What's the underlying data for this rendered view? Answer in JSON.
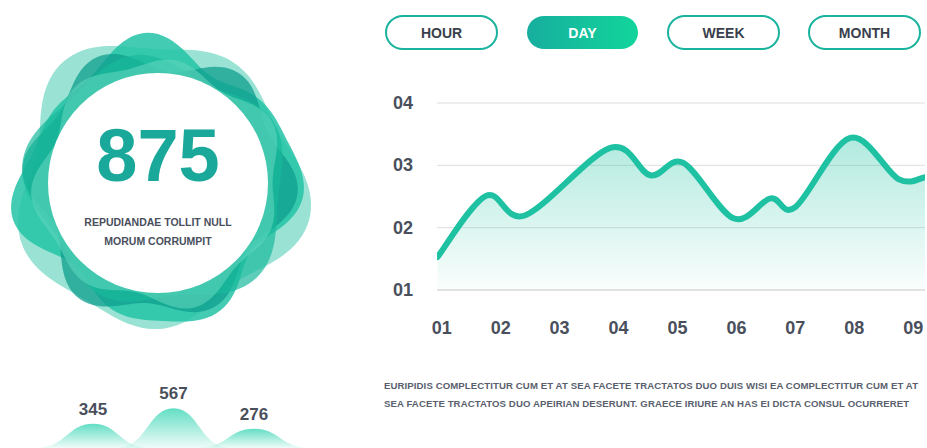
{
  "stat": {
    "value": 875,
    "caption": [
      "REPUDIANDAE TOLLIT NULL",
      "MORUM CORRUMPIT"
    ]
  },
  "buttons": {
    "labels": [
      "HOUR",
      "DAY",
      "WEEK",
      "MONTH"
    ],
    "active": 1
  },
  "chart_data": [
    {
      "type": "area",
      "color": "#1ec2a2",
      "x": [
        0.93,
        1.75,
        2.42,
        3.86,
        4.54,
        5.1,
        5.95,
        6.58,
        7.0,
        7.93,
        8.75,
        9.2
      ],
      "values": [
        1.53,
        2.51,
        2.2,
        3.28,
        2.84,
        3.04,
        2.15,
        2.47,
        2.33,
        3.44,
        2.78,
        2.81
      ],
      "xlim": [
        0.92,
        9.2
      ],
      "ylim": [
        1,
        4
      ],
      "xticks": [
        {
          "value": 1,
          "label": "01"
        },
        {
          "value": 2,
          "label": "02"
        },
        {
          "value": 3,
          "label": "03"
        },
        {
          "value": 4,
          "label": "04"
        },
        {
          "value": 5,
          "label": "05"
        },
        {
          "value": 6,
          "label": "06"
        },
        {
          "value": 7,
          "label": "07"
        },
        {
          "value": 8,
          "label": "08"
        },
        {
          "value": 9,
          "label": "09"
        }
      ],
      "yticks": [
        {
          "value": 1,
          "label": "01"
        },
        {
          "value": 2,
          "label": "02"
        },
        {
          "value": 3,
          "label": "03"
        },
        {
          "value": 4,
          "label": "04"
        }
      ],
      "grid": true
    },
    {
      "type": "area",
      "color": "#2fd3b0",
      "values": [
        345,
        567,
        276
      ],
      "ylim": [
        0,
        600
      ],
      "data_labels": true,
      "tick_labels": false
    }
  ],
  "description": "EURIPIDIS COMPLECTITUR CUM ET AT SEA FACETE TRACTATOS DUO DUIS WISI EA COMPLECTITUR CUM ET AT SEA FACETE TRACTATOS DUO APEIRIAN DESERUNT. GRAECE IRIURE AN HAS EI DICTA CONSUL OCURRERET"
}
